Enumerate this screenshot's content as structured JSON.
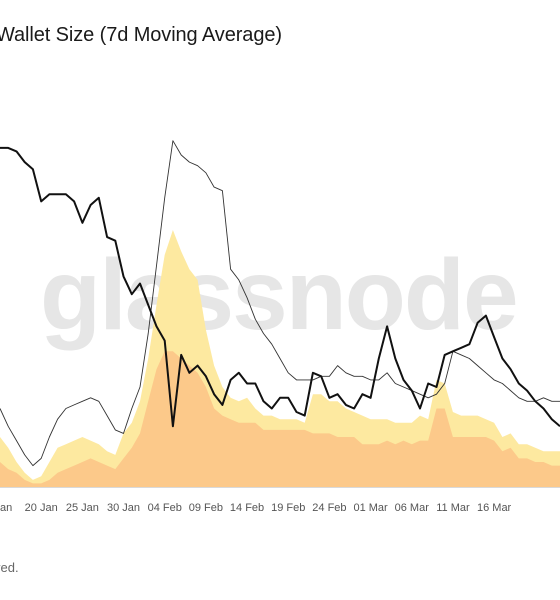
{
  "chart_data": {
    "type": "line",
    "title": "Wallet Size (7d Moving Average)",
    "footer_text": "ved.",
    "watermark": "glassnode",
    "x_tick_labels": [
      "an",
      "20 Jan",
      "25 Jan",
      "30 Jan",
      "04 Feb",
      "09 Feb",
      "14 Feb",
      "19 Feb",
      "24 Feb",
      "01 Mar",
      "06 Mar",
      "11 Mar",
      "16 Mar"
    ],
    "ylim": [
      0,
      100
    ],
    "colors": {
      "bold_line": "#111111",
      "thin_line": "#333333",
      "light_area": "#fde9a0",
      "dark_area": "#fcc98a"
    },
    "series": [
      {
        "key": "bold_line",
        "values": [
          95,
          95,
          94,
          91,
          89,
          80,
          82,
          82,
          82,
          80,
          74,
          79,
          81,
          70,
          69,
          59,
          54,
          57,
          51,
          45,
          41,
          17,
          37,
          32,
          34,
          31,
          26,
          23,
          30,
          32,
          29,
          29,
          24,
          22,
          25,
          25,
          21,
          20,
          32,
          31,
          25,
          26,
          23,
          22,
          26,
          25,
          36,
          45,
          36,
          30,
          27,
          22,
          29,
          28,
          37,
          38,
          39,
          40,
          46,
          48,
          42,
          36,
          33,
          29,
          27,
          24,
          22,
          19,
          17
        ]
      },
      {
        "key": "thin_line",
        "values": [
          22,
          17,
          13,
          9,
          6,
          8,
          14,
          19,
          22,
          23,
          24,
          25,
          24,
          20,
          16,
          15,
          22,
          28,
          43,
          62,
          81,
          97,
          93,
          91,
          90,
          88,
          84,
          83,
          61,
          58,
          53,
          47,
          43,
          40,
          36,
          32,
          30,
          30,
          30,
          31,
          31,
          34,
          32,
          31,
          31,
          30,
          30,
          32,
          29,
          28,
          27,
          26,
          25,
          26,
          29,
          38,
          37,
          36,
          34,
          32,
          30,
          29,
          27,
          25,
          24,
          24,
          25,
          24,
          24
        ]
      },
      {
        "key": "light_area",
        "values": [
          14,
          11,
          7,
          4,
          2,
          3,
          7,
          11,
          12,
          13,
          14,
          13,
          12,
          10,
          9,
          15,
          18,
          24,
          36,
          51,
          65,
          72,
          66,
          61,
          58,
          44,
          34,
          28,
          25,
          24,
          25,
          22,
          20,
          20,
          19,
          19,
          19,
          18,
          26,
          26,
          24,
          24,
          22,
          21,
          20,
          19,
          19,
          19,
          18,
          18,
          18,
          20,
          19,
          30,
          29,
          21,
          20,
          20,
          20,
          19,
          18,
          14,
          15,
          12,
          12,
          11,
          10,
          10,
          10
        ]
      },
      {
        "key": "dark_area",
        "values": [
          7,
          5,
          4,
          2,
          1,
          1,
          2,
          4,
          5,
          6,
          7,
          8,
          7,
          6,
          5,
          8,
          11,
          15,
          24,
          33,
          38,
          38,
          36,
          34,
          32,
          28,
          22,
          20,
          19,
          18,
          18,
          18,
          16,
          16,
          16,
          16,
          16,
          16,
          15,
          15,
          15,
          14,
          14,
          14,
          12,
          12,
          12,
          13,
          12,
          13,
          12,
          13,
          13,
          22,
          22,
          14,
          14,
          14,
          14,
          14,
          13,
          10,
          11,
          8,
          8,
          7,
          7,
          6,
          6
        ]
      }
    ]
  }
}
